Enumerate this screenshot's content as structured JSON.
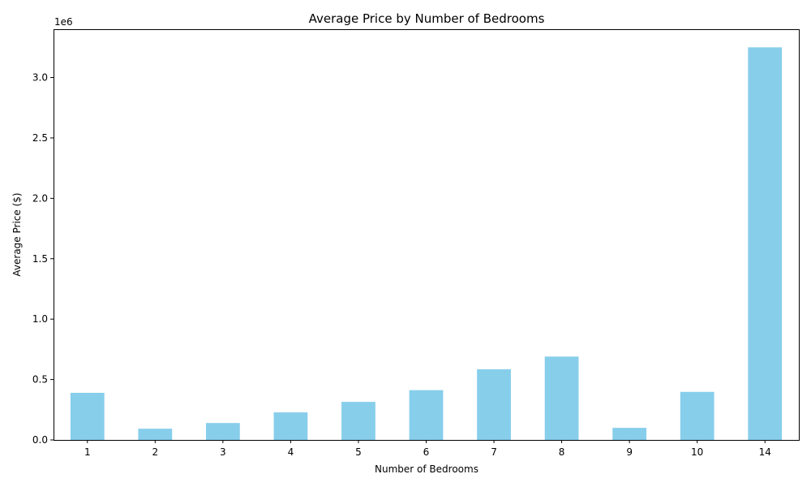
{
  "chart_data": {
    "type": "bar",
    "title": "Average Price by Number of Bedrooms",
    "xlabel": "Number of Bedrooms",
    "ylabel": "Average Price ($)",
    "scale_label": "1e6",
    "categories": [
      "1",
      "2",
      "3",
      "4",
      "5",
      "6",
      "7",
      "8",
      "9",
      "10",
      "14"
    ],
    "values": [
      390000,
      93000,
      140000,
      228000,
      315000,
      412000,
      585000,
      690000,
      100000,
      398000,
      3250000
    ],
    "ylim": [
      0,
      3400000
    ],
    "yticks": [
      0,
      500000,
      1000000,
      1500000,
      2000000,
      2500000,
      3000000
    ],
    "ytick_labels": [
      "0.0",
      "0.5",
      "1.0",
      "1.5",
      "2.0",
      "2.5",
      "3.0"
    ],
    "bar_color": "#87ceeb",
    "grid": false,
    "legend": "none"
  }
}
